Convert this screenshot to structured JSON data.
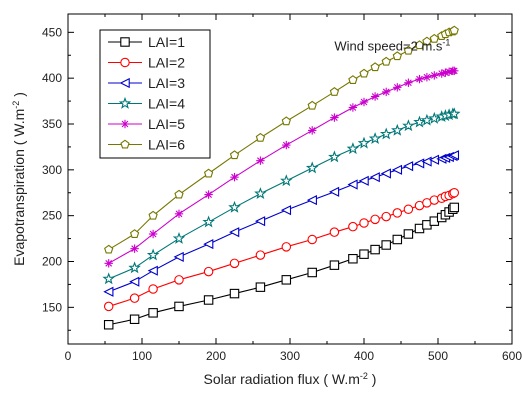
{
  "chart_data": {
    "type": "line",
    "title": "",
    "xlabel": "Solar radiation flux ( W.m",
    "xlabel_sup": "-2",
    "xlabel_tail": " )",
    "ylabel": "Evapotranspiration ( W.m",
    "ylabel_sup": "-2",
    "ylabel_tail": " )",
    "xlim": [
      0,
      600
    ],
    "ylim": [
      110,
      470
    ],
    "x_ticks": [
      0,
      100,
      200,
      300,
      400,
      500,
      600
    ],
    "y_ticks": [
      150,
      200,
      250,
      300,
      350,
      400,
      450
    ],
    "x_tick_labels": [
      "0",
      "100",
      "200",
      "300",
      "400",
      "500",
      "600"
    ],
    "y_tick_labels": [
      "150",
      "200",
      "250",
      "300",
      "350",
      "400",
      "450"
    ],
    "grid": false,
    "legend_position": "top-left",
    "annotation": {
      "text": "Wind speed=2 m.s",
      "sup": "-1",
      "x": 360,
      "y": 430
    },
    "x": [
      55,
      90,
      115,
      150,
      190,
      225,
      260,
      295,
      330,
      360,
      385,
      400,
      415,
      430,
      445,
      460,
      475,
      485,
      495,
      505,
      510,
      515,
      520,
      522
    ],
    "series": [
      {
        "name": "LAI=1",
        "color": "#000000",
        "marker": "square",
        "values": [
          131,
          137,
          144,
          151,
          158,
          165,
          172,
          180,
          188,
          196,
          203,
          208,
          213,
          218,
          224,
          230,
          236,
          240,
          244,
          248,
          251,
          254,
          257,
          259
        ]
      },
      {
        "name": "LAI=2",
        "color": "#ff0000",
        "marker": "circle",
        "values": [
          151,
          160,
          170,
          180,
          189,
          198,
          207,
          216,
          224,
          232,
          238,
          242,
          246,
          249,
          253,
          257,
          261,
          264,
          267,
          269,
          271,
          272,
          274,
          275
        ]
      },
      {
        "name": "LAI=3",
        "color": "#0000cc",
        "marker": "triangle-left",
        "values": [
          167,
          178,
          190,
          205,
          219,
          232,
          244,
          256,
          267,
          276,
          284,
          288,
          292,
          296,
          300,
          304,
          307,
          309,
          311,
          312,
          313,
          314,
          315,
          316
        ]
      },
      {
        "name": "LAI=4",
        "color": "#007777",
        "marker": "star",
        "values": [
          181,
          193,
          207,
          225,
          243,
          259,
          274,
          288,
          302,
          314,
          323,
          329,
          334,
          339,
          343,
          348,
          352,
          354,
          356,
          358,
          359,
          360,
          361,
          361
        ]
      },
      {
        "name": "LAI=5",
        "color": "#cc00cc",
        "marker": "asterisk",
        "values": [
          198,
          214,
          230,
          252,
          273,
          292,
          310,
          327,
          343,
          357,
          368,
          374,
          380,
          385,
          390,
          395,
          399,
          401,
          403,
          405,
          406,
          407,
          408,
          408
        ]
      },
      {
        "name": "LAI=6",
        "color": "#777700",
        "marker": "pentagon",
        "values": [
          213,
          230,
          250,
          273,
          296,
          316,
          335,
          353,
          370,
          385,
          398,
          405,
          412,
          418,
          424,
          430,
          436,
          440,
          443,
          446,
          448,
          450,
          451,
          452
        ]
      }
    ]
  }
}
